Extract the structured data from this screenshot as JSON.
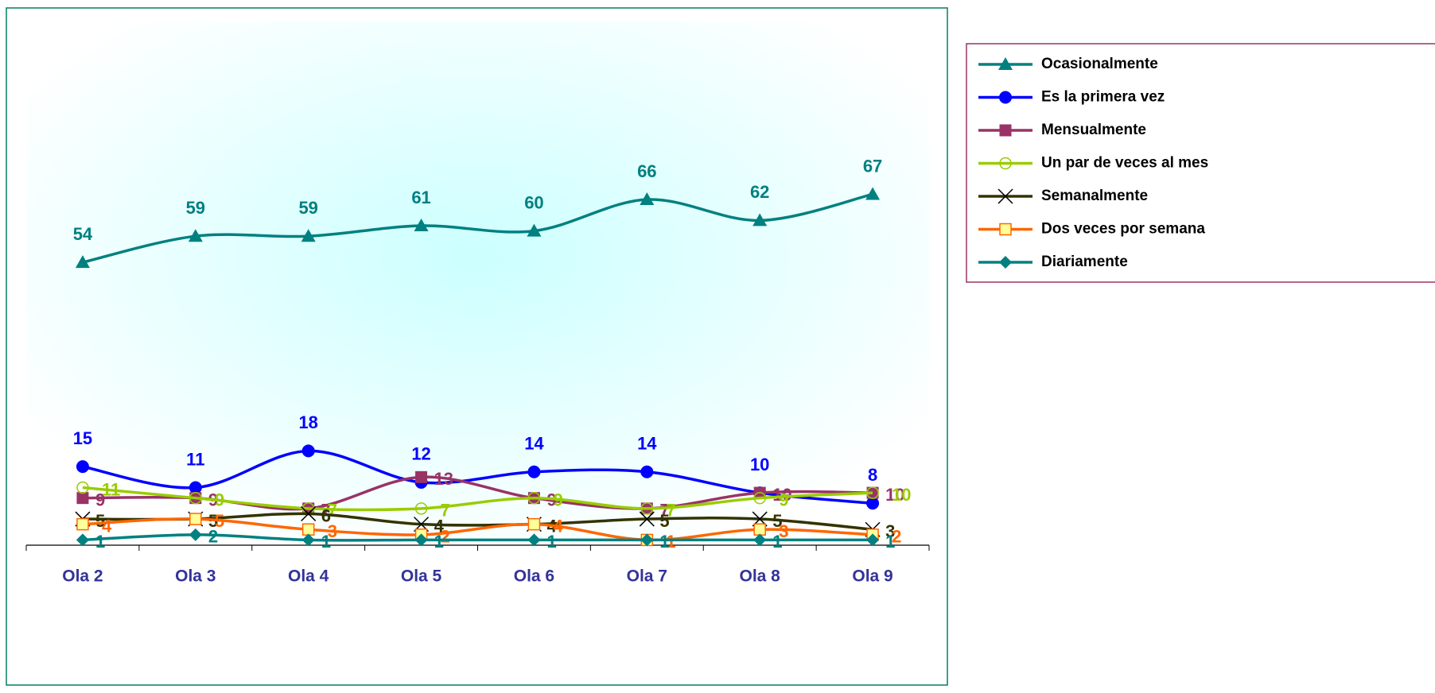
{
  "chart_data": {
    "type": "line",
    "categories": [
      "Ola 2",
      "Ola 3",
      "Ola 4",
      "Ola 5",
      "Ola 6",
      "Ola 7",
      "Ola 8",
      "Ola 9"
    ],
    "ylim": [
      0,
      100
    ],
    "legend": "right",
    "series": [
      {
        "name": "Ocasionalmente",
        "color": "#008080",
        "marker": "triangle",
        "values": [
          54,
          59,
          59,
          61,
          60,
          66,
          62,
          67
        ]
      },
      {
        "name": "Es la primera vez",
        "color": "#0000ff",
        "marker": "circle",
        "values": [
          15,
          11,
          18,
          12,
          14,
          14,
          10,
          8
        ]
      },
      {
        "name": "Mensualmente",
        "color": "#993366",
        "marker": "square",
        "values": [
          9,
          9,
          7,
          13,
          9,
          7,
          10,
          10
        ]
      },
      {
        "name": "Un par de veces al mes",
        "color": "#99cc00",
        "marker": "open-circle",
        "values": [
          11,
          9,
          7,
          7,
          9,
          7,
          9,
          10
        ]
      },
      {
        "name": "Semanalmente",
        "color": "#333300",
        "marker": "x",
        "values": [
          5,
          5,
          6,
          4,
          4,
          5,
          5,
          3
        ]
      },
      {
        "name": "Dos veces por semana",
        "color": "#ff6600",
        "marker": "yellow-square",
        "values": [
          4,
          5,
          3,
          2,
          4,
          1,
          3,
          2
        ]
      },
      {
        "name": "Diariamente",
        "color": "#008080",
        "marker": "diamond",
        "values": [
          1,
          2,
          1,
          1,
          1,
          1,
          1,
          1
        ]
      }
    ]
  }
}
